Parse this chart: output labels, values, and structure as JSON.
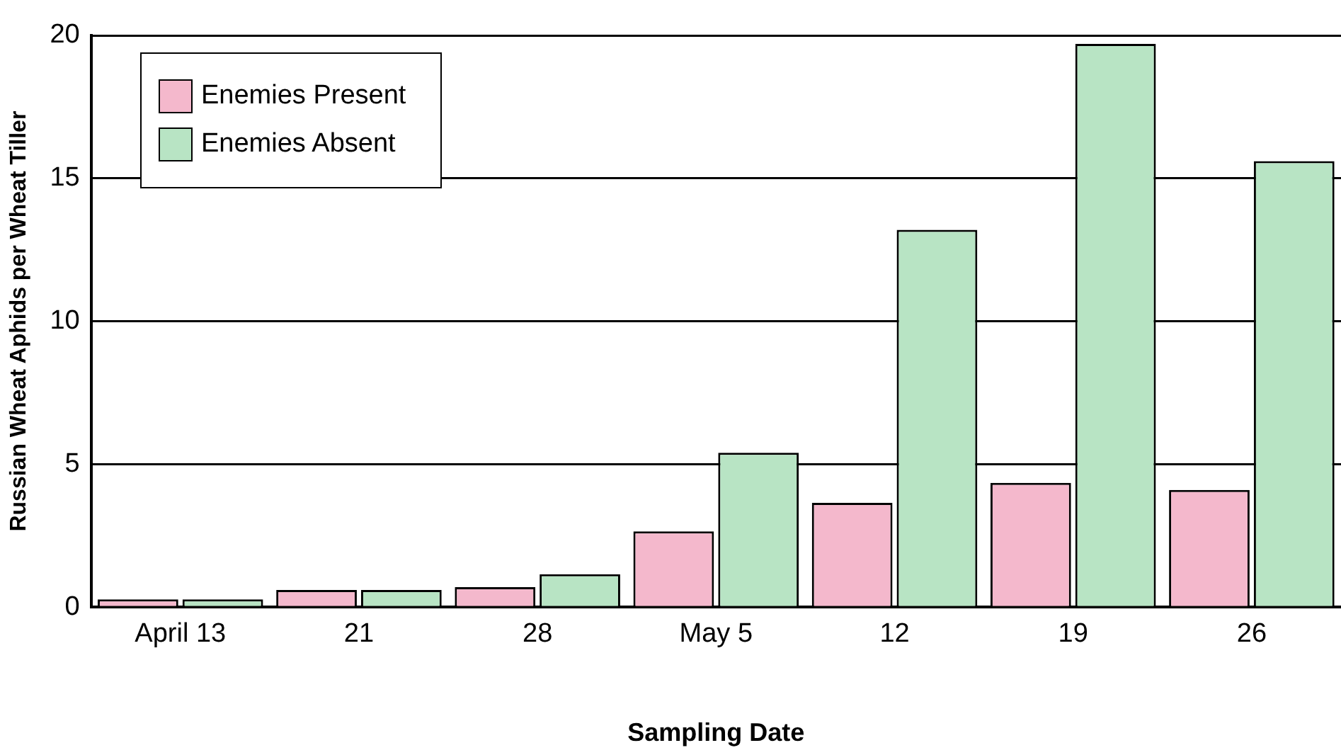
{
  "chart_data": {
    "type": "bar",
    "xlabel": "Sampling Date",
    "ylabel": "Russian Wheat Aphids per Wheat Tiller",
    "categories": [
      "April 13",
      "21",
      "28",
      "May 5",
      "12",
      "19",
      "26"
    ],
    "series": [
      {
        "name": "Enemies Present",
        "color": "#f4b8cc",
        "values": [
          0.27,
          0.6,
          0.7,
          2.65,
          3.65,
          4.35,
          4.1
        ]
      },
      {
        "name": "Enemies Absent",
        "color": "#b8e4c4",
        "values": [
          0.27,
          0.6,
          1.15,
          5.4,
          13.2,
          19.7,
          15.6
        ]
      }
    ],
    "ylim": [
      0,
      20
    ],
    "yticks": [
      0,
      5,
      10,
      15,
      20
    ],
    "grid": "y",
    "legend": "top left"
  }
}
